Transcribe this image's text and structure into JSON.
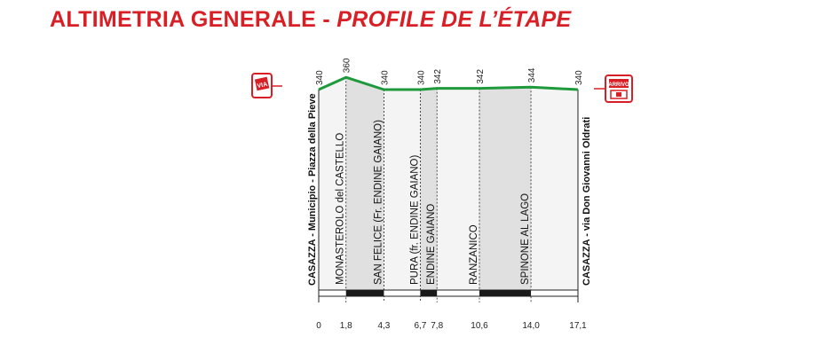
{
  "header": {
    "title_it": "ALTIMETRIA GENERALE",
    "separator": "-",
    "title_fr": "PROFILE DE L’ÉTAPE"
  },
  "colors": {
    "title": "#d91f26",
    "profile_line": "#1e9a3c",
    "fill_light": "#f4f4f4",
    "fill_dark": "#e0e0e0",
    "icon_red": "#d91f26"
  },
  "icons": {
    "start": "start-flag-icon",
    "finish": "finish-flag-icon",
    "start_text": "VIA",
    "finish_text": "ARRIVO"
  },
  "chart_data": {
    "type": "area",
    "title": "",
    "xlabel": "",
    "ylabel": "",
    "unit_x": "km",
    "unit_y": "m",
    "xlim": [
      0,
      17.1
    ],
    "ylim": [
      300,
      365
    ],
    "points": [
      {
        "km": 0,
        "km_label": "0",
        "alt": 340,
        "alt_label": "340",
        "name": "CASAZZA - Municipio - Piazza della Pieve",
        "location": "start"
      },
      {
        "km": 1.8,
        "km_label": "1,8",
        "alt": 360,
        "alt_label": "360",
        "name": "MONASTEROLO del CASTELLO",
        "location": "inside"
      },
      {
        "km": 4.3,
        "km_label": "4,3",
        "alt": 340,
        "alt_label": "340",
        "name": "SAN FELICE (Fr. ENDINE GAIANO)",
        "location": "inside"
      },
      {
        "km": 6.7,
        "km_label": "6,7",
        "alt": 340,
        "alt_label": "340",
        "name": "PURA (fr. ENDINE GAIANO)",
        "location": "inside"
      },
      {
        "km": 7.8,
        "km_label": "7,8",
        "alt": 342,
        "alt_label": "342",
        "name": "ENDINE GAIANO",
        "location": "inside"
      },
      {
        "km": 10.6,
        "km_label": "10,6",
        "alt": 342,
        "alt_label": "342",
        "name": "RANZANICO",
        "location": "inside"
      },
      {
        "km": 14.0,
        "km_label": "14,0",
        "alt": 344,
        "alt_label": "344",
        "name": "SPINONE AL LAGO",
        "location": "inside"
      },
      {
        "km": 17.1,
        "km_label": "17,1",
        "alt": 340,
        "alt_label": "340",
        "name": "CASAZZA - via Don Giovanni Oldrati",
        "location": "end"
      }
    ],
    "km_bar_black_segments": [
      [
        1.8,
        4.3
      ],
      [
        6.7,
        7.8
      ],
      [
        10.6,
        14.0
      ]
    ]
  }
}
